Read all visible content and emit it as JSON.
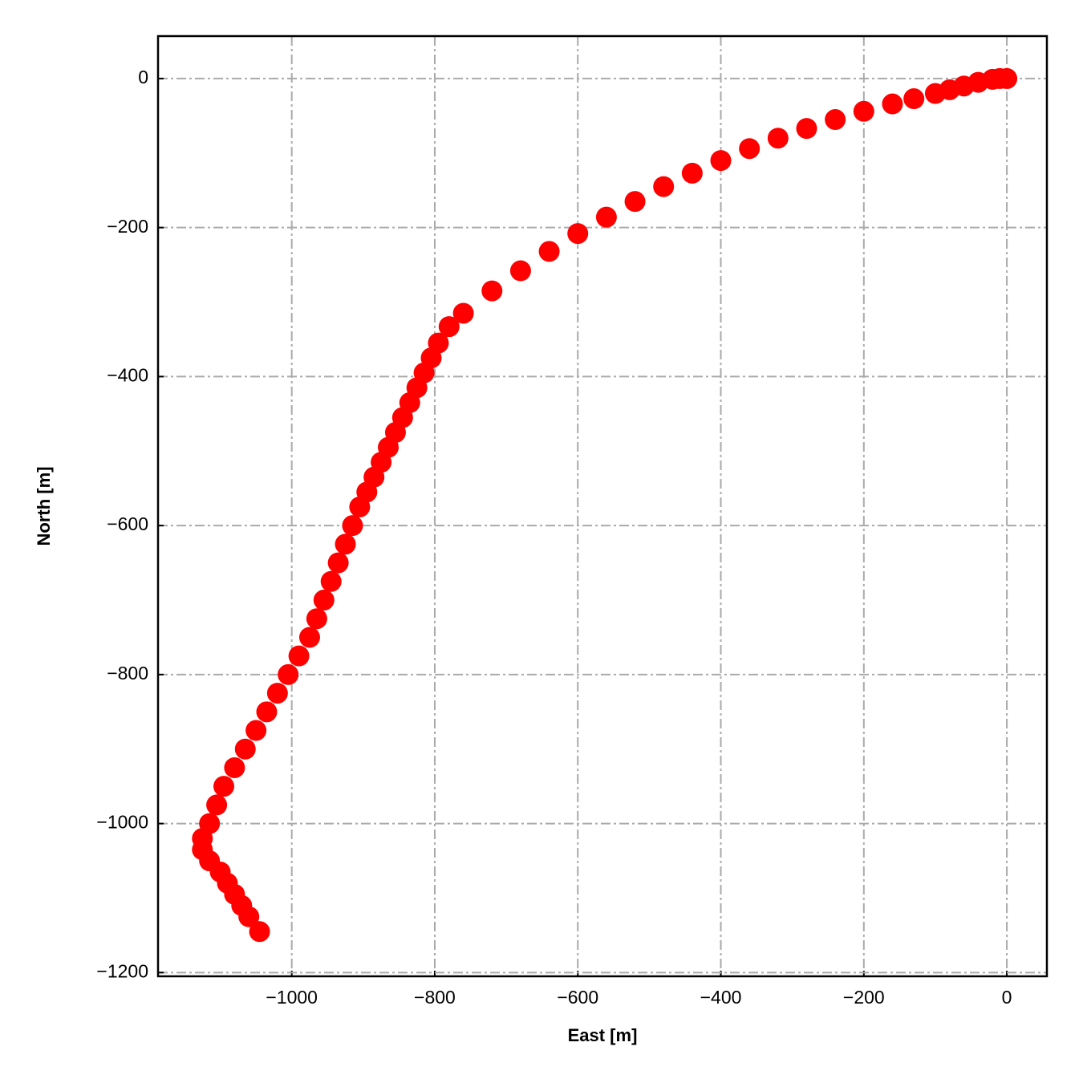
{
  "chart_data": {
    "type": "scatter",
    "xlabel": "East [m]",
    "ylabel": "North [m]",
    "x": [
      0,
      -10,
      -20,
      -40,
      -60,
      -80,
      -100,
      -130,
      -160,
      -200,
      -240,
      -280,
      -320,
      -360,
      -400,
      -440,
      -480,
      -520,
      -560,
      -600,
      -640,
      -680,
      -720,
      -760,
      -780,
      -795,
      -805,
      -815,
      -825,
      -835,
      -845,
      -855,
      -865,
      -875,
      -885,
      -895,
      -905,
      -915,
      -925,
      -935,
      -945,
      -955,
      -965,
      -975,
      -990,
      -1005,
      -1020,
      -1035,
      -1050,
      -1065,
      -1080,
      -1095,
      -1105,
      -1115,
      -1125,
      -1125,
      -1115,
      -1100,
      -1090,
      -1080,
      -1070,
      -1060,
      -1045
    ],
    "values": [
      0,
      0,
      -1,
      -5,
      -10,
      -15,
      -20,
      -27,
      -34,
      -44,
      -55,
      -67,
      -80,
      -94,
      -110,
      -127,
      -145,
      -165,
      -186,
      -208,
      -232,
      -258,
      -285,
      -315,
      -333,
      -355,
      -375,
      -395,
      -415,
      -435,
      -455,
      -475,
      -495,
      -515,
      -535,
      -555,
      -575,
      -600,
      -625,
      -650,
      -675,
      -700,
      -725,
      -750,
      -775,
      -800,
      -825,
      -850,
      -875,
      -900,
      -925,
      -950,
      -975,
      -1000,
      -1020,
      -1035,
      -1050,
      -1065,
      -1080,
      -1095,
      -1110,
      -1125,
      -1145
    ],
    "color": "#ff0000",
    "xlim": [
      -1187,
      56
    ],
    "ylim": [
      -1205,
      57
    ],
    "xticks": [
      {
        "value": -1000,
        "label": "−1000"
      },
      {
        "value": -800,
        "label": "−800"
      },
      {
        "value": -600,
        "label": "−600"
      },
      {
        "value": -400,
        "label": "−400"
      },
      {
        "value": -200,
        "label": "−200"
      },
      0
    ],
    "yticks": [
      {
        "value": -1200,
        "label": "−1200"
      },
      {
        "value": -1000,
        "label": "−1000"
      },
      {
        "value": -800,
        "label": "−800"
      },
      {
        "value": -600,
        "label": "−600"
      },
      {
        "value": -400,
        "label": "−400"
      },
      {
        "value": -200,
        "label": "−200"
      },
      0
    ],
    "grid": true
  }
}
